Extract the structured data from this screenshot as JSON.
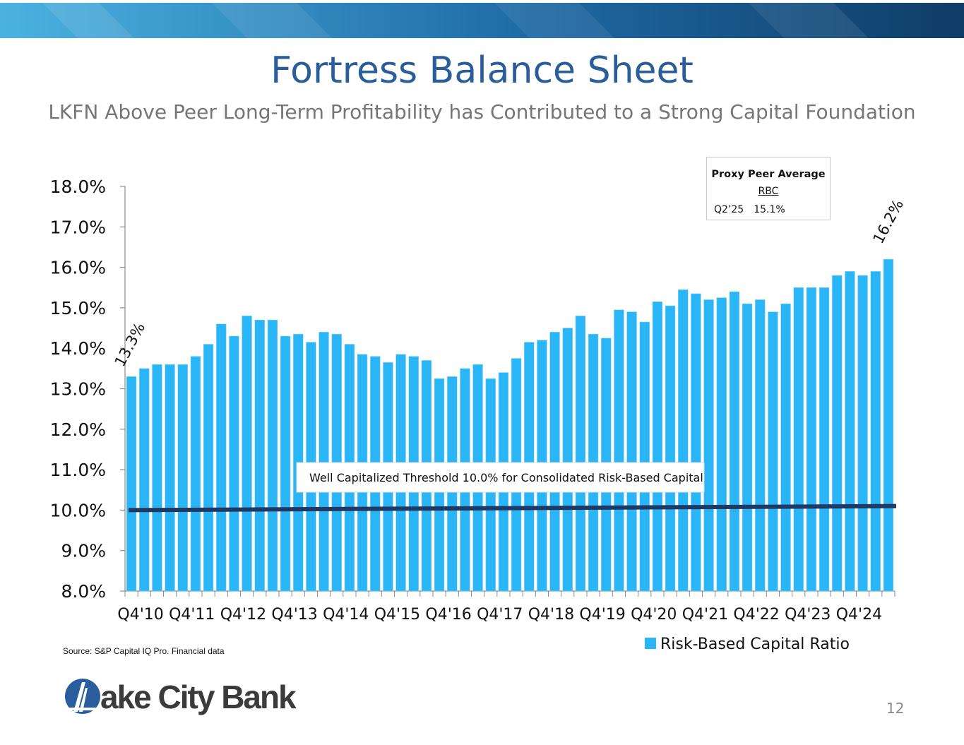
{
  "slide": {
    "title": "Fortress Balance Sheet",
    "subtitle": "LKFN Above Peer Long-Term Profitability has Contributed to a Strong Capital Foundation",
    "source": "Source: S&P Capital IQ Pro. Financial data",
    "logo_text": "ake City Bank",
    "page_number": "12"
  },
  "peer_box": {
    "title": "Proxy Peer Average",
    "subtitle": "RBC",
    "period": "Q2’25",
    "value": "15.1%"
  },
  "colors": {
    "bar": "#2ab6f6",
    "threshold_line": "#1f3864",
    "title": "#2a5d9b",
    "banner_dark": "#0f3d66",
    "banner_light": "#3fa6d8"
  },
  "chart_data": {
    "type": "bar",
    "series_name": "Risk-Based Capital Ratio",
    "x_tick_labels": [
      "Q4'10",
      "Q4'11",
      "Q4'12",
      "Q4'13",
      "Q4'14",
      "Q4'15",
      "Q4'16",
      "Q4'17",
      "Q4'18",
      "Q4'19",
      "Q4'20",
      "Q4'21",
      "Q4'22",
      "Q4'23",
      "Q4'24"
    ],
    "values": [
      13.3,
      13.5,
      13.6,
      13.6,
      13.6,
      13.8,
      14.1,
      14.6,
      14.3,
      14.8,
      14.7,
      14.7,
      14.3,
      14.35,
      14.15,
      14.4,
      14.35,
      14.1,
      13.85,
      13.8,
      13.65,
      13.85,
      13.8,
      13.7,
      13.25,
      13.3,
      13.5,
      13.6,
      13.25,
      13.4,
      13.75,
      14.15,
      14.2,
      14.4,
      14.5,
      14.8,
      14.35,
      14.25,
      14.95,
      14.9,
      14.65,
      15.15,
      15.05,
      15.45,
      15.35,
      15.2,
      15.25,
      15.4,
      15.1,
      15.2,
      14.9,
      15.1,
      15.5,
      15.5,
      15.5,
      15.8,
      15.9,
      15.8,
      15.9,
      16.2
    ],
    "ylim": [
      8.0,
      18.0
    ],
    "y_ticks": [
      8,
      9,
      10,
      11,
      12,
      13,
      14,
      15,
      16,
      17,
      18
    ],
    "y_tick_labels": [
      "8.0%",
      "9.0%",
      "10.0%",
      "11.0%",
      "12.0%",
      "13.0%",
      "14.0%",
      "15.0%",
      "16.0%",
      "17.0%",
      "18.0%"
    ],
    "threshold": {
      "value_start": 10.0,
      "value_end": 10.1,
      "label": "Well Capitalized Threshold 10.0% for Consolidated Risk-Based Capital"
    },
    "annotations": {
      "first": "13.3%",
      "last": "16.2%"
    },
    "legend_position": "bottom-right"
  }
}
